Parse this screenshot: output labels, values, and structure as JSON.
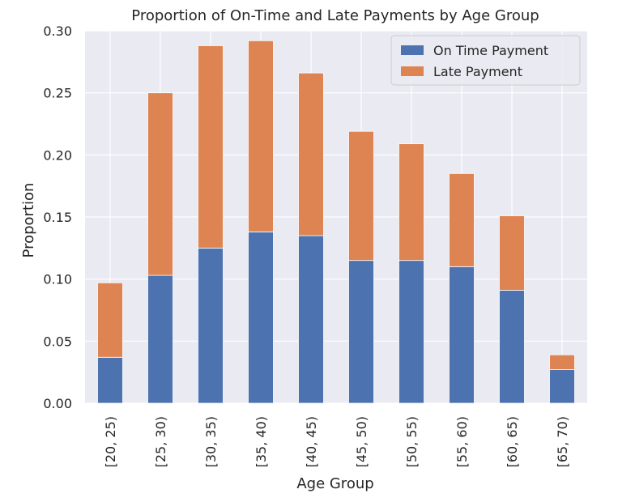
{
  "chart_data": {
    "type": "bar",
    "stacked": true,
    "title": "Proportion of On-Time and Late Payments by Age Group",
    "xlabel": "Age Group",
    "ylabel": "Proportion",
    "categories": [
      "[20, 25)",
      "[25, 30)",
      "[30, 35)",
      "[35, 40)",
      "[40, 45)",
      "[45, 50)",
      "[50, 55)",
      "[55, 60)",
      "[60, 65)",
      "[65, 70)"
    ],
    "series": [
      {
        "name": "On Time Payment",
        "color": "#4c72b0",
        "values": [
          0.037,
          0.103,
          0.125,
          0.138,
          0.135,
          0.115,
          0.115,
          0.11,
          0.091,
          0.027
        ]
      },
      {
        "name": "Late Payment",
        "color": "#dd8452",
        "values": [
          0.06,
          0.147,
          0.163,
          0.154,
          0.131,
          0.104,
          0.094,
          0.075,
          0.06,
          0.012
        ]
      }
    ],
    "ylim": [
      0,
      0.3
    ],
    "yticks": [
      "0.00",
      "0.05",
      "0.10",
      "0.15",
      "0.20",
      "0.25",
      "0.30"
    ],
    "grid": true,
    "legend_position": "top-right",
    "background": "#eaeaf2"
  }
}
